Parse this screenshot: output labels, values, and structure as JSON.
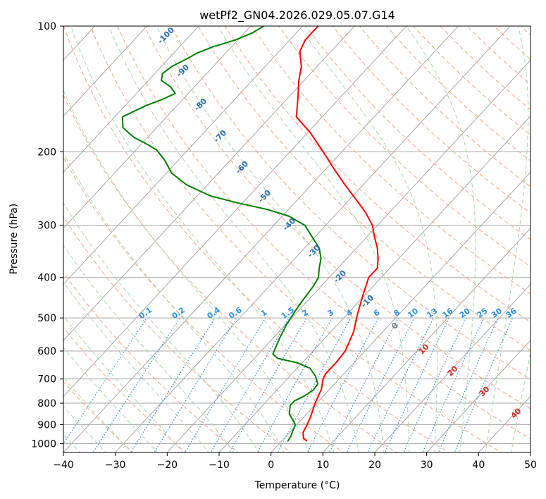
{
  "chart_data": {
    "type": "line",
    "chart_kind": "skew-T log-P",
    "title": "wetPf2_GN04.2026.029.05.07.G14",
    "xlabel": "Temperature (°C)",
    "ylabel": "Pressure (hPa)",
    "xlim": [
      -40,
      50
    ],
    "ylim": [
      1050,
      100
    ],
    "yscale": "log",
    "x_ticks": [
      "−40",
      "−30",
      "−20",
      "−10",
      "0",
      "10",
      "20",
      "30",
      "40",
      "50"
    ],
    "y_ticks": [
      "100",
      "200",
      "300",
      "400",
      "500",
      "600",
      "700",
      "800",
      "900",
      "1000"
    ],
    "grid": true,
    "series": [
      {
        "name": "",
        "role": "temperature",
        "color": "#ff0000",
        "points": [
          [
            4.8,
            985
          ],
          [
            3.7,
            970
          ],
          [
            2.6,
            940
          ],
          [
            2.0,
            900
          ],
          [
            1.2,
            860
          ],
          [
            -0.3,
            800
          ],
          [
            -1.6,
            740
          ],
          [
            -3.1,
            700
          ],
          [
            -3.5,
            680
          ],
          [
            -3.5,
            640
          ],
          [
            -3.8,
            600
          ],
          [
            -5.6,
            540
          ],
          [
            -8.0,
            490
          ],
          [
            -10.4,
            440
          ],
          [
            -12.4,
            400
          ],
          [
            -12.4,
            380
          ],
          [
            -14.0,
            360
          ],
          [
            -16.0,
            340
          ],
          [
            -18.5,
            320
          ],
          [
            -21.0,
            300
          ],
          [
            -24.5,
            280
          ],
          [
            -28.8,
            260
          ],
          [
            -33.5,
            240
          ],
          [
            -38.4,
            220
          ],
          [
            -43.6,
            200
          ],
          [
            -49.5,
            180
          ],
          [
            -55.0,
            165
          ],
          [
            -57.8,
            150
          ],
          [
            -61.0,
            135
          ],
          [
            -63.0,
            125
          ],
          [
            -66.0,
            115
          ],
          [
            -67.0,
            108
          ],
          [
            -67.0,
            100
          ]
        ]
      },
      {
        "name": "",
        "role": "dewpoint",
        "color": "#008000",
        "points": [
          [
            1.2,
            985
          ],
          [
            0.9,
            960
          ],
          [
            -0.3,
            900
          ],
          [
            -3.3,
            850
          ],
          [
            -4.7,
            810
          ],
          [
            -4.7,
            790
          ],
          [
            -3.7,
            770
          ],
          [
            -3.0,
            745
          ],
          [
            -3.2,
            720
          ],
          [
            -5.0,
            690
          ],
          [
            -7.5,
            660
          ],
          [
            -11.0,
            640
          ],
          [
            -15.5,
            625
          ],
          [
            -17.2,
            610
          ],
          [
            -17.8,
            590
          ],
          [
            -18.7,
            560
          ],
          [
            -19.8,
            520
          ],
          [
            -20.6,
            480
          ],
          [
            -21.1,
            450
          ],
          [
            -21.5,
            420
          ],
          [
            -22.1,
            400
          ],
          [
            -23.6,
            380
          ],
          [
            -25.0,
            360
          ],
          [
            -27.2,
            340
          ],
          [
            -30.5,
            320
          ],
          [
            -34.0,
            300
          ],
          [
            -38.8,
            285
          ],
          [
            -44.0,
            275
          ],
          [
            -51.0,
            265
          ],
          [
            -57.5,
            255
          ],
          [
            -64.0,
            240
          ],
          [
            -69.0,
            225
          ],
          [
            -72.5,
            210
          ],
          [
            -76.0,
            198
          ],
          [
            -79.8,
            190
          ],
          [
            -82.5,
            185
          ],
          [
            -84.5,
            180
          ],
          [
            -86.5,
            175
          ],
          [
            -88.5,
            165
          ],
          [
            -86.0,
            155
          ],
          [
            -84.0,
            150
          ],
          [
            -82.5,
            145
          ],
          [
            -84.5,
            140
          ],
          [
            -87.5,
            135
          ],
          [
            -88.5,
            130
          ],
          [
            -88.0,
            125
          ],
          [
            -86.5,
            120
          ],
          [
            -85.5,
            116
          ],
          [
            -83.5,
            112
          ],
          [
            -80.5,
            108
          ],
          [
            -78.5,
            104
          ],
          [
            -77.5,
            100
          ]
        ]
      }
    ],
    "dry_adiabat_labels": [
      "-100",
      "-90",
      "-80",
      "-70",
      "-60",
      "-50",
      "-40",
      "-30",
      "-20",
      "-10"
    ],
    "moist_adiabat_labels": [
      "0",
      "10",
      "20",
      "30",
      "40"
    ],
    "mixing_ratio_labels": [
      "0.1",
      "0.2",
      "0.4",
      "0.6",
      "1",
      "1.5",
      "2",
      "3",
      "4",
      "6",
      "8",
      "10",
      "13",
      "16",
      "20",
      "25",
      "30",
      "36"
    ],
    "colors": {
      "isotherm": "#a8a8a8",
      "isobar": "#a8a8a8",
      "dry_adiabat": "#f5a585",
      "moist_adiabat": "#a9d6a9",
      "mixing_ratio": "#3e8fdf",
      "dry_adiabat_label": "#2a6fb5",
      "moist_adiabat_label": "#d62728",
      "mixing_ratio_label": "#2b93e8"
    }
  }
}
